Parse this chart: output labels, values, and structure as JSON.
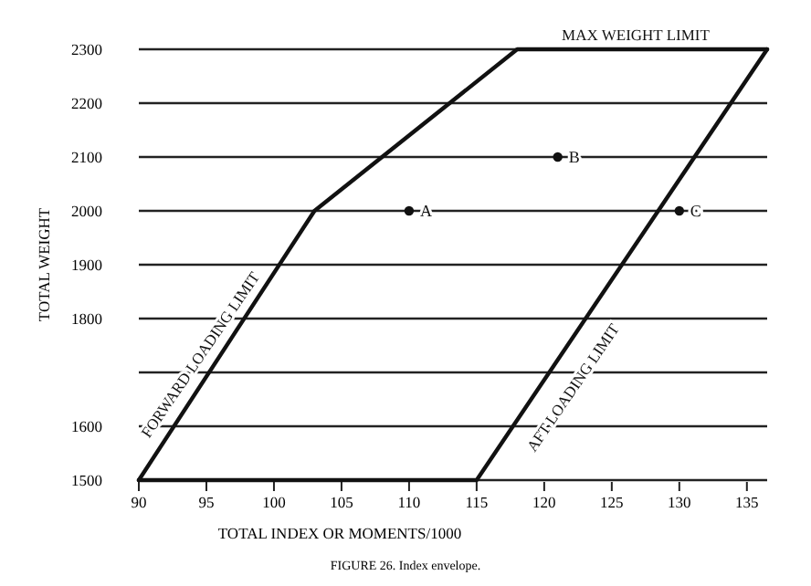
{
  "chart_data": {
    "type": "line",
    "xlabel": "TOTAL INDEX OR MOMENTS/1000",
    "ylabel": "TOTAL WEIGHT",
    "xlim": [
      90,
      136.5
    ],
    "ylim": [
      1500,
      2300
    ],
    "xticks": [
      90,
      95,
      100,
      105,
      110,
      115,
      120,
      125,
      130,
      135
    ],
    "yticks": [
      1500,
      1600,
      {
        "value": 1700,
        "label": null
      },
      1800,
      1900,
      2000,
      2100,
      2200,
      2300
    ],
    "grid": "y",
    "marker": "none",
    "line_style": "solid",
    "series": [
      {
        "color": "#111111",
        "x": [
          90,
          103,
          118,
          136.5
        ],
        "values": [
          1500,
          2000,
          2300,
          2300
        ]
      },
      {
        "color": "#111111",
        "x": [
          90,
          115,
          136.5
        ],
        "values": [
          1500,
          1500,
          2300
        ]
      },
      {
        "type": "scatter",
        "name": "A",
        "color": "#111111",
        "x": [
          110
        ],
        "values": [
          2000
        ],
        "marker": "circle"
      },
      {
        "type": "scatter",
        "name": "B",
        "color": "#111111",
        "x": [
          121
        ],
        "values": [
          2100
        ],
        "marker": "circle"
      },
      {
        "type": "scatter",
        "name": "C",
        "color": "#111111",
        "x": [
          130
        ],
        "values": [
          2000
        ],
        "marker": "circle"
      }
    ],
    "annotations": [
      "MAX WEIGHT LIMIT",
      "FORWARD LOADING LIMIT",
      "AFT LOADING LIMIT",
      "FIGURE 26. Index envelope."
    ]
  }
}
